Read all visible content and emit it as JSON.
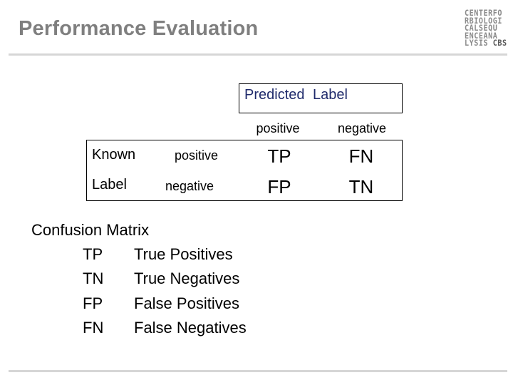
{
  "slide": {
    "title": "Performance Evaluation"
  },
  "logo": {
    "lines": [
      "CENTERFO",
      "RBIOLOGI",
      "CALSEQU",
      "ENCEANA",
      "LYSIS"
    ],
    "accent": "CBS"
  },
  "matrix": {
    "header": "Predicted Label",
    "col_headers": [
      "positive",
      "negative"
    ],
    "row_group_label": [
      "Known",
      "Label"
    ],
    "row_headers": [
      "positive",
      "negative"
    ],
    "cells": [
      [
        "TP",
        "FN"
      ],
      [
        "FP",
        "TN"
      ]
    ]
  },
  "legend": {
    "title": "Confusion Matrix",
    "items": [
      {
        "abbr": "TP",
        "desc": "True Positives"
      },
      {
        "abbr": "TN",
        "desc": "True Negatives"
      },
      {
        "abbr": "FP",
        "desc": "False Positives"
      },
      {
        "abbr": "FN",
        "desc": "False Negatives"
      }
    ]
  }
}
